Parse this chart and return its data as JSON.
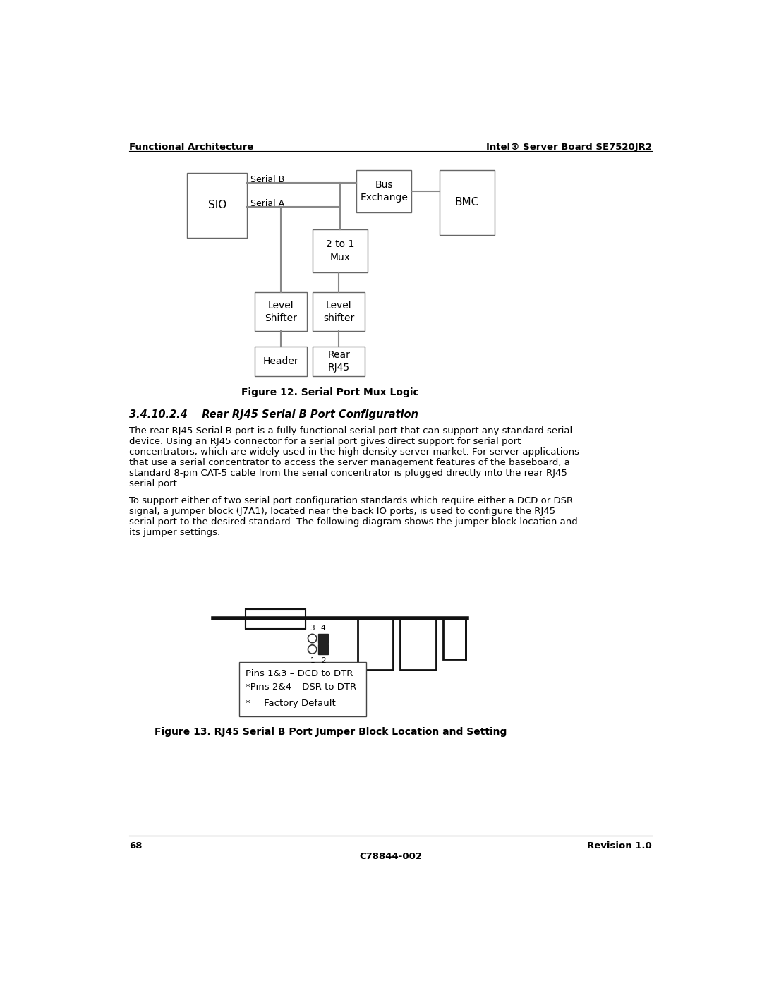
{
  "page_title_left": "Functional Architecture",
  "page_title_right": "Intel® Server Board SE7520JR2",
  "fig_caption1": "Figure 12. Serial Port Mux Logic",
  "section_title": "3.4.10.2.4    Rear RJ45 Serial B Port Configuration",
  "para1_lines": [
    "The rear RJ45 Serial B port is a fully functional serial port that can support any standard serial",
    "device. Using an RJ45 connector for a serial port gives direct support for serial port",
    "concentrators, which are widely used in the high-density server market. For server applications",
    "that use a serial concentrator to access the server management features of the baseboard, a",
    "standard 8-pin CAT-5 cable from the serial concentrator is plugged directly into the rear RJ45",
    "serial port."
  ],
  "para2_lines": [
    "To support either of two serial port configuration standards which require either a DCD or DSR",
    "signal, a jumper block (J7A1), located near the back IO ports, is used to configure the RJ45",
    "serial port to the desired standard. The following diagram shows the jumper block location and",
    "its jumper settings."
  ],
  "fig_caption2": "Figure 13. RJ45 Serial B Port Jumper Block Location and Setting",
  "page_num": "68",
  "revision": "Revision 1.0",
  "doc_num": "C78844-002",
  "jumper_text_line1": "Pins 1&3 – DCD to DTR",
  "jumper_text_line2": "*Pins 2&4 – DSR to DTR",
  "jumper_text_line3": "* = Factory Default",
  "bg_color": "#ffffff",
  "box_edge_color": "#666666",
  "text_color": "#000000",
  "line_color": "#888888"
}
